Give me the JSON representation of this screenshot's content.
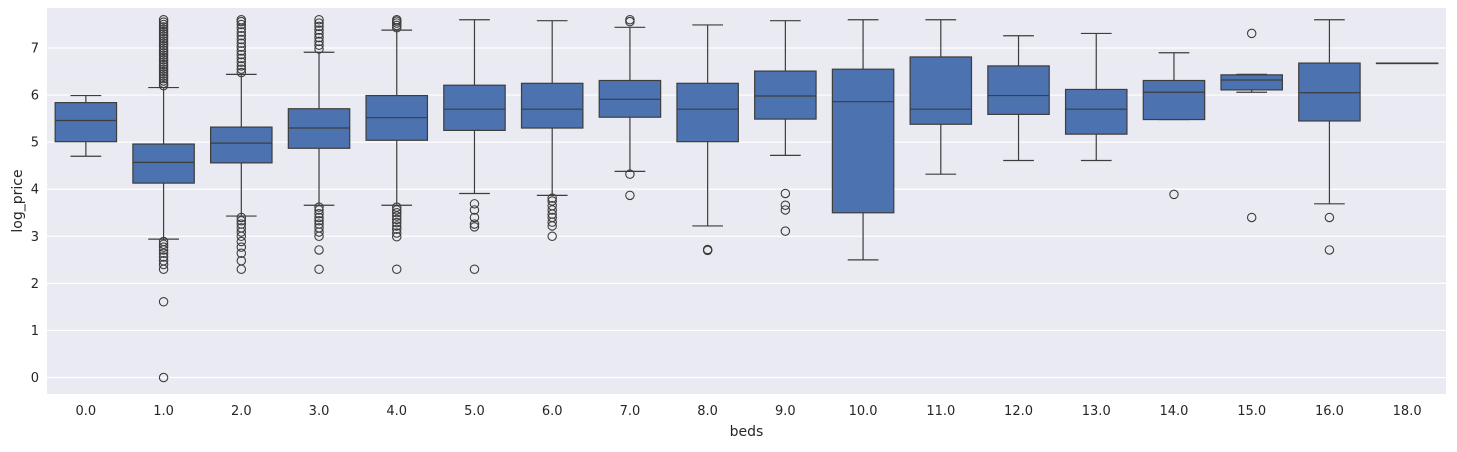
{
  "chart_data": {
    "type": "box",
    "xlabel": "beds",
    "ylabel": "log_price",
    "ylim": [
      -0.35,
      7.85
    ],
    "yticks": [
      0,
      1,
      2,
      3,
      4,
      5,
      6,
      7
    ],
    "grid": true,
    "box_color": "#4c72b0",
    "line_color": "#3d3d3d",
    "background_color": "#eaeaf2",
    "categories": [
      "0.0",
      "1.0",
      "2.0",
      "3.0",
      "4.0",
      "5.0",
      "6.0",
      "7.0",
      "8.0",
      "9.0",
      "10.0",
      "11.0",
      "12.0",
      "13.0",
      "14.0",
      "15.0",
      "16.0",
      "18.0"
    ],
    "boxes": [
      {
        "whisker_low": 4.7,
        "q1": 5.01,
        "median": 5.46,
        "q3": 5.84,
        "whisker_high": 5.99,
        "outliers": []
      },
      {
        "whisker_low": 2.94,
        "q1": 4.13,
        "median": 4.57,
        "q3": 4.96,
        "whisker_high": 6.16,
        "outliers": [
          0.0,
          1.61,
          2.3,
          2.4,
          2.48,
          2.56,
          2.64,
          2.71,
          2.77,
          2.83,
          2.89,
          6.2,
          6.25,
          6.3,
          6.35,
          6.4,
          6.45,
          6.5,
          6.55,
          6.6,
          6.65,
          6.7,
          6.75,
          6.8,
          6.85,
          6.9,
          6.95,
          7.0,
          7.05,
          7.1,
          7.15,
          7.2,
          7.25,
          7.3,
          7.35,
          7.4,
          7.45,
          7.5,
          7.55,
          7.6
        ]
      },
      {
        "whisker_low": 3.43,
        "q1": 4.56,
        "median": 4.98,
        "q3": 5.32,
        "whisker_high": 6.44,
        "outliers": [
          2.3,
          2.48,
          2.64,
          2.77,
          2.89,
          3.0,
          3.09,
          3.18,
          3.26,
          3.33,
          3.4,
          6.48,
          6.55,
          6.62,
          6.7,
          6.78,
          6.86,
          6.94,
          7.02,
          7.1,
          7.18,
          7.26,
          7.34,
          7.42,
          7.5,
          7.56,
          7.6
        ]
      },
      {
        "whisker_low": 3.66,
        "q1": 4.87,
        "median": 5.3,
        "q3": 5.71,
        "whisker_high": 6.91,
        "outliers": [
          2.3,
          2.71,
          3.0,
          3.09,
          3.18,
          3.26,
          3.33,
          3.4,
          3.48,
          3.56,
          3.62,
          6.98,
          7.06,
          7.14,
          7.22,
          7.3,
          7.38,
          7.46,
          7.53,
          7.6
        ]
      },
      {
        "whisker_low": 3.66,
        "q1": 5.04,
        "median": 5.52,
        "q3": 5.99,
        "whisker_high": 7.38,
        "outliers": [
          2.3,
          2.99,
          3.07,
          3.15,
          3.22,
          3.29,
          3.36,
          3.43,
          3.5,
          3.56,
          3.62,
          7.43,
          7.48,
          7.53,
          7.57,
          7.6
        ]
      },
      {
        "whisker_low": 3.91,
        "q1": 5.25,
        "median": 5.7,
        "q3": 6.21,
        "whisker_high": 7.6,
        "outliers": [
          2.3,
          3.2,
          3.26,
          3.4,
          3.56,
          3.69
        ]
      },
      {
        "whisker_low": 3.87,
        "q1": 5.3,
        "median": 5.7,
        "q3": 6.25,
        "whisker_high": 7.58,
        "outliers": [
          3.0,
          3.22,
          3.3,
          3.4,
          3.47,
          3.56,
          3.65,
          3.75,
          3.81
        ]
      },
      {
        "whisker_low": 4.38,
        "q1": 5.53,
        "median": 5.91,
        "q3": 6.31,
        "whisker_high": 7.44,
        "outliers": [
          3.87,
          4.32,
          7.56,
          7.6
        ]
      },
      {
        "whisker_low": 3.22,
        "q1": 5.01,
        "median": 5.7,
        "q3": 6.25,
        "whisker_high": 7.49,
        "outliers": [
          2.7,
          2.71,
          2.72
        ]
      },
      {
        "whisker_low": 4.72,
        "q1": 5.49,
        "median": 5.98,
        "q3": 6.51,
        "whisker_high": 7.58,
        "outliers": [
          3.11,
          3.56,
          3.66,
          3.91
        ]
      },
      {
        "whisker_low": 2.5,
        "q1": 3.5,
        "median": 5.86,
        "q3": 6.55,
        "whisker_high": 7.6,
        "outliers": []
      },
      {
        "whisker_low": 4.32,
        "q1": 5.38,
        "median": 5.7,
        "q3": 6.81,
        "whisker_high": 7.6,
        "outliers": []
      },
      {
        "whisker_low": 4.61,
        "q1": 5.59,
        "median": 5.99,
        "q3": 6.62,
        "whisker_high": 7.26,
        "outliers": []
      },
      {
        "whisker_low": 4.61,
        "q1": 5.17,
        "median": 5.7,
        "q3": 6.12,
        "whisker_high": 7.31,
        "outliers": []
      },
      {
        "whisker_low": 5.48,
        "q1": 5.48,
        "median": 6.06,
        "q3": 6.31,
        "whisker_high": 6.9,
        "outliers": [
          3.89
        ]
      },
      {
        "whisker_low": 6.06,
        "q1": 6.11,
        "median": 6.32,
        "q3": 6.43,
        "whisker_high": 6.44,
        "outliers": [
          3.4,
          7.31
        ]
      },
      {
        "whisker_low": 3.69,
        "q1": 5.45,
        "median": 6.05,
        "q3": 6.68,
        "whisker_high": 7.6,
        "outliers": [
          2.71,
          3.4
        ]
      },
      {
        "whisker_low": 6.68,
        "q1": 6.68,
        "median": 6.68,
        "q3": 6.68,
        "whisker_high": 6.68,
        "outliers": []
      }
    ]
  }
}
